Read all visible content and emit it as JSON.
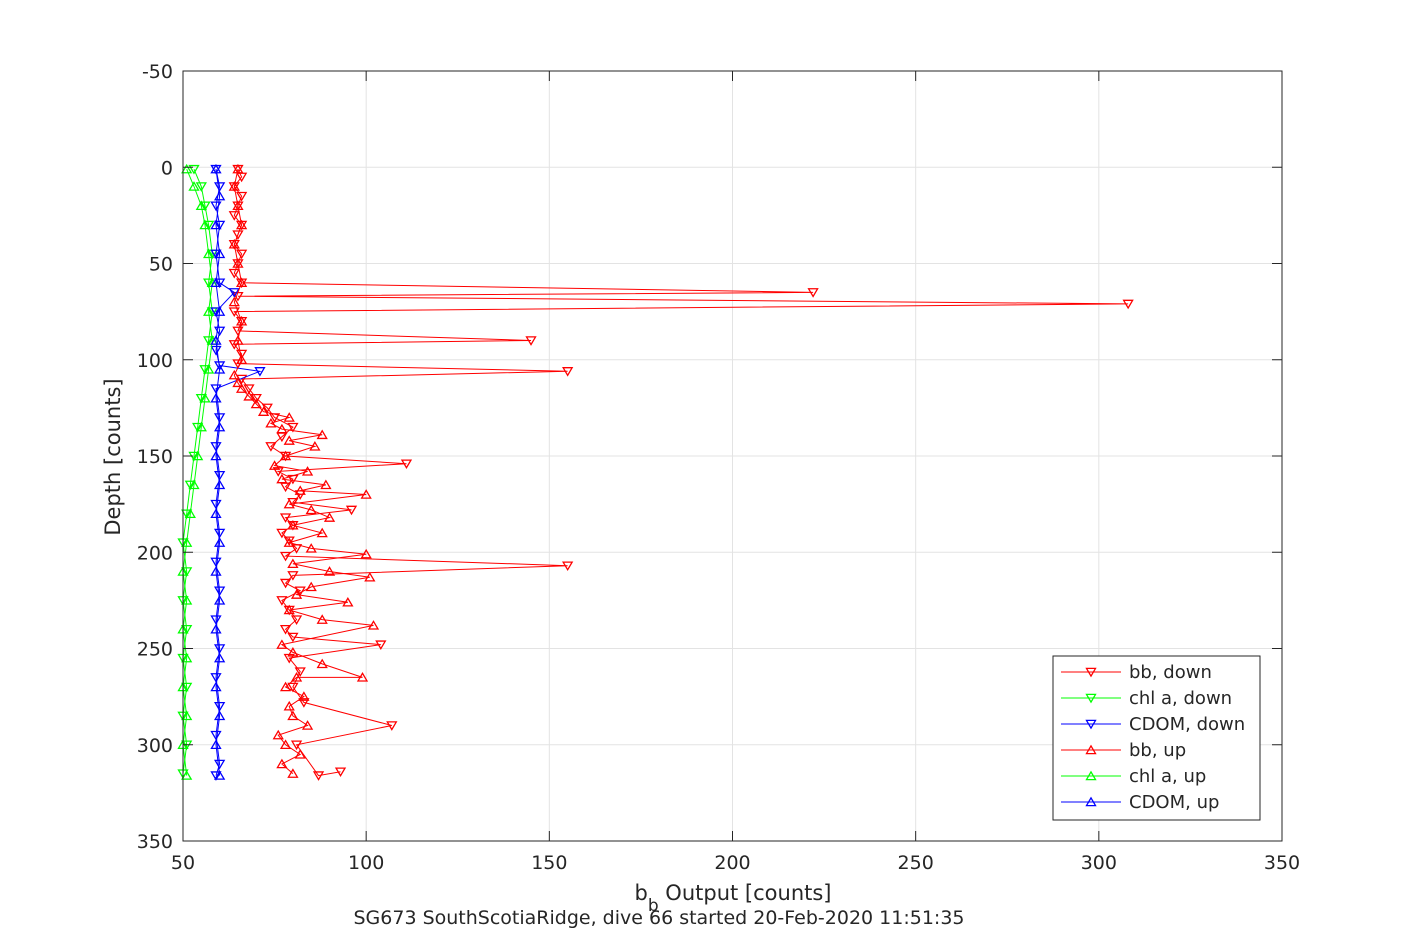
{
  "chart_data": {
    "type": "scatter",
    "title": "",
    "caption": "SG673 SouthScotiaRidge, dive 66 started 20-Feb-2020 11:51:35",
    "xlabel_main": "b",
    "xlabel_sub": "b",
    "xlabel_rest": " Output [counts]",
    "ylabel": "Depth [counts]",
    "xlim": [
      50,
      350
    ],
    "ylim": [
      -50,
      350
    ],
    "y_reversed": true,
    "grid": true,
    "xticks": [
      50,
      100,
      150,
      200,
      250,
      300,
      350
    ],
    "yticks": [
      -50,
      0,
      50,
      100,
      150,
      200,
      250,
      300,
      350
    ],
    "legend_position": "bottom-right",
    "series": [
      {
        "name": "bb, down",
        "color": "#ff0000",
        "marker": "triangle-down",
        "points": [
          [
            65,
            1
          ],
          [
            66,
            5
          ],
          [
            64,
            10
          ],
          [
            66,
            15
          ],
          [
            65,
            20
          ],
          [
            64,
            25
          ],
          [
            66,
            30
          ],
          [
            65,
            35
          ],
          [
            64,
            40
          ],
          [
            66,
            45
          ],
          [
            65,
            50
          ],
          [
            64,
            55
          ],
          [
            66,
            60
          ],
          [
            222,
            65
          ],
          [
            65,
            67
          ],
          [
            308,
            71
          ],
          [
            64,
            75
          ],
          [
            66,
            80
          ],
          [
            65,
            85
          ],
          [
            145,
            90
          ],
          [
            64,
            92
          ],
          [
            66,
            97
          ],
          [
            65,
            102
          ],
          [
            155,
            106
          ],
          [
            66,
            110
          ],
          [
            68,
            115
          ],
          [
            70,
            120
          ],
          [
            73,
            125
          ],
          [
            75,
            130
          ],
          [
            80,
            135
          ],
          [
            77,
            140
          ],
          [
            74,
            145
          ],
          [
            78,
            150
          ],
          [
            111,
            154
          ],
          [
            76,
            158
          ],
          [
            80,
            162
          ],
          [
            78,
            166
          ],
          [
            82,
            170
          ],
          [
            80,
            174
          ],
          [
            96,
            178
          ],
          [
            78,
            182
          ],
          [
            80,
            186
          ],
          [
            77,
            190
          ],
          [
            79,
            194
          ],
          [
            81,
            198
          ],
          [
            78,
            202
          ],
          [
            155,
            207
          ],
          [
            80,
            212
          ],
          [
            78,
            216
          ],
          [
            82,
            220
          ],
          [
            77,
            225
          ],
          [
            79,
            230
          ],
          [
            81,
            235
          ],
          [
            78,
            240
          ],
          [
            80,
            244
          ],
          [
            104,
            248
          ],
          [
            79,
            255
          ],
          [
            82,
            262
          ],
          [
            80,
            270
          ],
          [
            83,
            278
          ],
          [
            107,
            290
          ],
          [
            81,
            300
          ],
          [
            87,
            316
          ],
          [
            93,
            314
          ]
        ]
      },
      {
        "name": "chl a, down",
        "color": "#00ff00",
        "marker": "triangle-down",
        "points": [
          [
            53,
            1
          ],
          [
            55,
            10
          ],
          [
            56,
            20
          ],
          [
            57,
            30
          ],
          [
            58,
            45
          ],
          [
            57,
            60
          ],
          [
            58,
            75
          ],
          [
            57,
            90
          ],
          [
            56,
            105
          ],
          [
            55,
            120
          ],
          [
            54,
            135
          ],
          [
            53,
            150
          ],
          [
            52,
            165
          ],
          [
            51,
            180
          ],
          [
            50,
            195
          ],
          [
            51,
            210
          ],
          [
            50,
            225
          ],
          [
            51,
            240
          ],
          [
            50,
            255
          ],
          [
            51,
            270
          ],
          [
            50,
            285
          ],
          [
            51,
            300
          ],
          [
            50,
            315
          ]
        ]
      },
      {
        "name": "CDOM, down",
        "color": "#0000ff",
        "marker": "triangle-down",
        "points": [
          [
            59,
            1
          ],
          [
            60,
            10
          ],
          [
            59,
            20
          ],
          [
            60,
            30
          ],
          [
            59,
            45
          ],
          [
            60,
            60
          ],
          [
            64,
            65
          ],
          [
            59,
            75
          ],
          [
            60,
            85
          ],
          [
            59,
            95
          ],
          [
            60,
            103
          ],
          [
            71,
            106
          ],
          [
            59,
            115
          ],
          [
            60,
            130
          ],
          [
            59,
            145
          ],
          [
            60,
            160
          ],
          [
            59,
            175
          ],
          [
            60,
            190
          ],
          [
            59,
            205
          ],
          [
            60,
            220
          ],
          [
            59,
            235
          ],
          [
            60,
            250
          ],
          [
            59,
            265
          ],
          [
            60,
            280
          ],
          [
            59,
            295
          ],
          [
            60,
            310
          ],
          [
            59,
            316
          ]
        ]
      },
      {
        "name": "bb, up",
        "color": "#ff0000",
        "marker": "triangle-up",
        "points": [
          [
            80,
            315
          ],
          [
            77,
            310
          ],
          [
            82,
            305
          ],
          [
            78,
            300
          ],
          [
            76,
            295
          ],
          [
            84,
            290
          ],
          [
            80,
            285
          ],
          [
            79,
            280
          ],
          [
            83,
            275
          ],
          [
            78,
            270
          ],
          [
            81,
            265
          ],
          [
            99,
            265
          ],
          [
            88,
            258
          ],
          [
            80,
            252
          ],
          [
            77,
            248
          ],
          [
            102,
            238
          ],
          [
            88,
            235
          ],
          [
            79,
            230
          ],
          [
            95,
            226
          ],
          [
            81,
            222
          ],
          [
            85,
            218
          ],
          [
            101,
            213
          ],
          [
            90,
            210
          ],
          [
            80,
            206
          ],
          [
            100,
            201
          ],
          [
            85,
            198
          ],
          [
            79,
            195
          ],
          [
            88,
            190
          ],
          [
            80,
            186
          ],
          [
            90,
            182
          ],
          [
            85,
            178
          ],
          [
            79,
            175
          ],
          [
            100,
            170
          ],
          [
            82,
            168
          ],
          [
            89,
            165
          ],
          [
            77,
            162
          ],
          [
            84,
            158
          ],
          [
            75,
            155
          ],
          [
            78,
            150
          ],
          [
            86,
            145
          ],
          [
            79,
            142
          ],
          [
            88,
            139
          ],
          [
            77,
            136
          ],
          [
            74,
            133
          ],
          [
            79,
            130
          ],
          [
            72,
            127
          ],
          [
            70,
            123
          ],
          [
            68,
            119
          ],
          [
            66,
            115
          ],
          [
            65,
            112
          ],
          [
            64,
            108
          ],
          [
            66,
            100
          ],
          [
            65,
            90
          ],
          [
            66,
            80
          ],
          [
            64,
            70
          ],
          [
            66,
            60
          ],
          [
            65,
            50
          ],
          [
            64,
            40
          ],
          [
            66,
            30
          ],
          [
            65,
            20
          ],
          [
            64,
            10
          ],
          [
            65,
            1
          ]
        ]
      },
      {
        "name": "chl a, up",
        "color": "#00ff00",
        "marker": "triangle-up",
        "points": [
          [
            51,
            316
          ],
          [
            50,
            300
          ],
          [
            51,
            285
          ],
          [
            50,
            270
          ],
          [
            51,
            255
          ],
          [
            50,
            240
          ],
          [
            51,
            225
          ],
          [
            50,
            210
          ],
          [
            51,
            195
          ],
          [
            52,
            180
          ],
          [
            53,
            165
          ],
          [
            54,
            150
          ],
          [
            55,
            135
          ],
          [
            56,
            120
          ],
          [
            57,
            105
          ],
          [
            58,
            90
          ],
          [
            57,
            75
          ],
          [
            58,
            60
          ],
          [
            57,
            45
          ],
          [
            56,
            30
          ],
          [
            55,
            20
          ],
          [
            53,
            10
          ],
          [
            51,
            1
          ]
        ]
      },
      {
        "name": "CDOM, up",
        "color": "#0000ff",
        "marker": "triangle-up",
        "points": [
          [
            60,
            316
          ],
          [
            59,
            300
          ],
          [
            60,
            285
          ],
          [
            59,
            270
          ],
          [
            60,
            255
          ],
          [
            59,
            240
          ],
          [
            60,
            225
          ],
          [
            59,
            210
          ],
          [
            60,
            195
          ],
          [
            59,
            180
          ],
          [
            60,
            165
          ],
          [
            59,
            150
          ],
          [
            60,
            135
          ],
          [
            59,
            120
          ],
          [
            60,
            105
          ],
          [
            59,
            90
          ],
          [
            60,
            75
          ],
          [
            59,
            60
          ],
          [
            60,
            45
          ],
          [
            59,
            30
          ],
          [
            60,
            15
          ],
          [
            59,
            1
          ]
        ]
      }
    ]
  }
}
